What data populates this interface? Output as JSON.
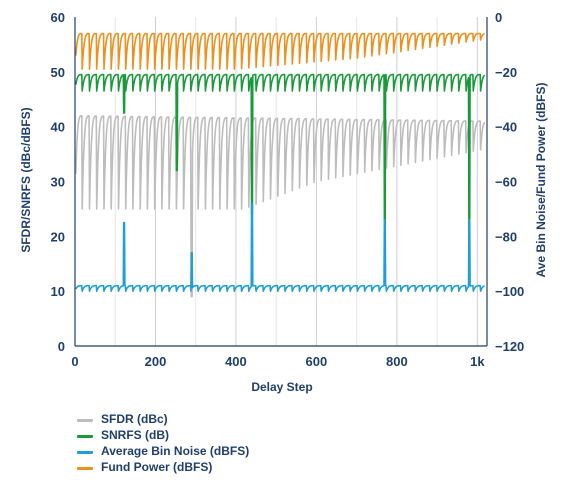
{
  "chart_data": {
    "type": "line",
    "xlabel": "Delay Step",
    "ylabel_left": "SFDR/SNRFS (dBc/dBFS)",
    "ylabel_right": "Ave Bin Noise/Fund Power (dBFS)",
    "x_range": [
      0,
      1024
    ],
    "x_ticks": [
      "0",
      "200",
      "400",
      "600",
      "800",
      "1k"
    ],
    "y_left_range": [
      0,
      60
    ],
    "y_left_ticks": [
      "0",
      "10",
      "20",
      "30",
      "40",
      "50",
      "60"
    ],
    "y_right_range": [
      -120,
      0
    ],
    "y_right_ticks": [
      "−120",
      "−100",
      "−80",
      "−60",
      "−40",
      "−20",
      "0"
    ],
    "grid": "vertical",
    "legend_position": "below",
    "series": [
      {
        "name": "SFDR (dBc)",
        "axis": "left",
        "color": "#bdbdbd",
        "period": 18,
        "peaks": [
          [
            0,
            42
          ],
          [
            1024,
            41
          ]
        ],
        "troughs": [
          [
            0,
            25
          ],
          [
            420,
            25
          ],
          [
            600,
            30
          ],
          [
            1024,
            36
          ]
        ],
        "spikes": [
          [
            290,
            9
          ]
        ]
      },
      {
        "name": "SNRFS (dB)",
        "axis": "left",
        "color": "#1a9a3a",
        "period": 18,
        "peaks": [
          [
            0,
            49.5
          ],
          [
            1024,
            49.5
          ]
        ],
        "troughs": [
          [
            0,
            46.5
          ],
          [
            1024,
            46.5
          ]
        ],
        "spikes": [
          [
            122,
            42.5
          ],
          [
            253,
            32
          ],
          [
            440,
            24
          ],
          [
            770,
            23
          ],
          [
            980,
            22
          ]
        ]
      },
      {
        "name": "Average Bin Noise (dBFS)",
        "axis": "right",
        "color": "#1f9fd6",
        "period": 18,
        "peaks": [
          [
            0,
            -98
          ],
          [
            1024,
            -98
          ]
        ],
        "troughs": [
          [
            0,
            -100
          ],
          [
            1024,
            -100
          ]
        ],
        "spikes": [
          [
            122,
            -75
          ],
          [
            290,
            -86
          ],
          [
            440,
            -68
          ],
          [
            770,
            -74
          ],
          [
            980,
            -74
          ]
        ]
      },
      {
        "name": "Fund Power (dBFS)",
        "axis": "right",
        "color": "#ef8f1c",
        "period": 18,
        "peaks": [
          [
            0,
            -6
          ],
          [
            1024,
            -6
          ]
        ],
        "troughs": [
          [
            0,
            -19
          ],
          [
            400,
            -19
          ],
          [
            700,
            -15
          ],
          [
            1024,
            -8
          ]
        ],
        "spikes": []
      }
    ]
  }
}
